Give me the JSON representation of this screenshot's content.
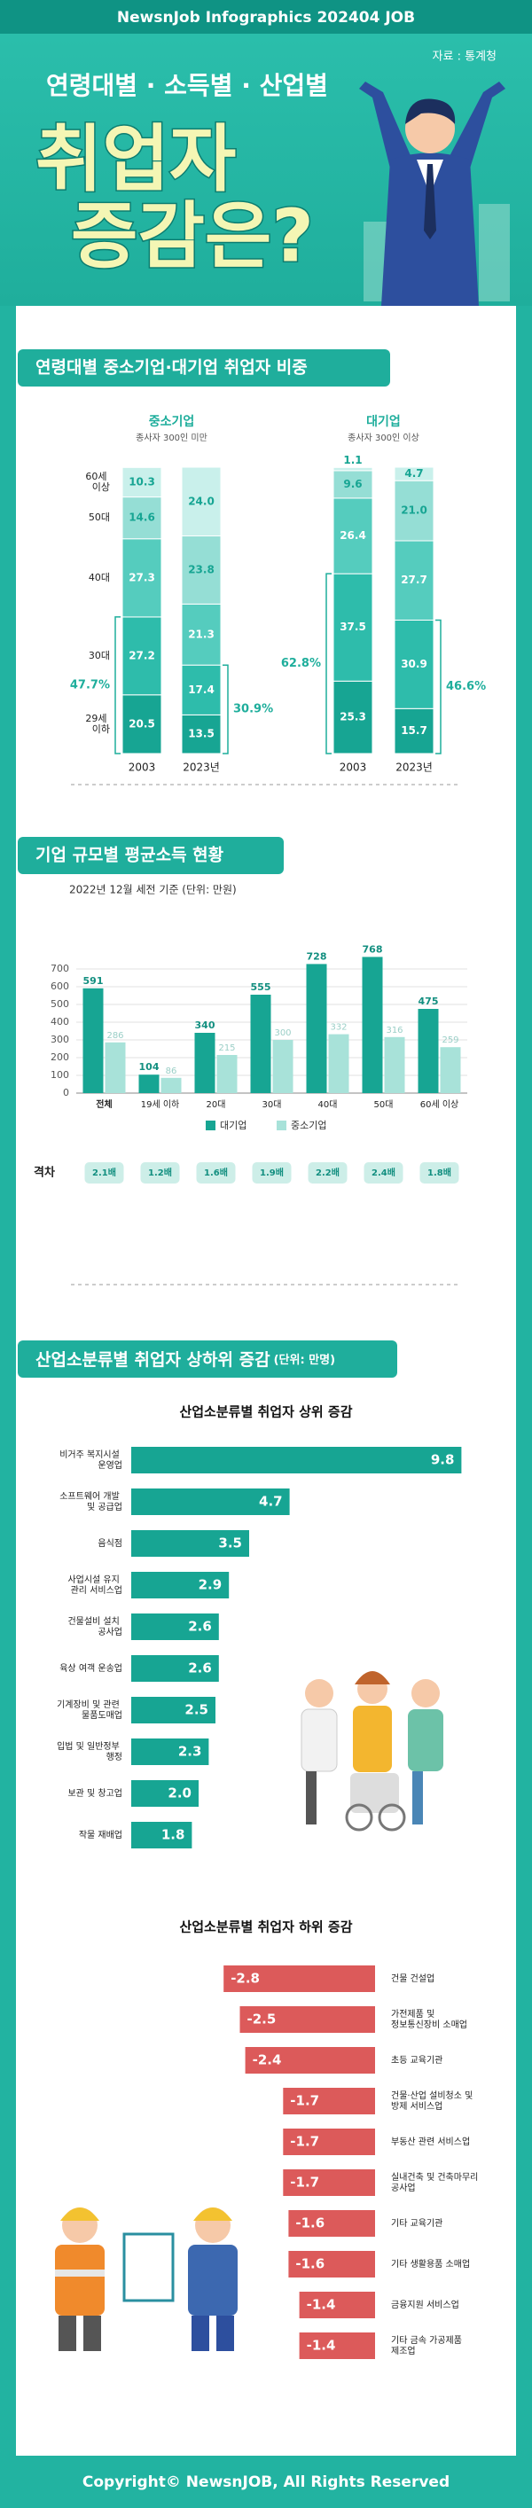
{
  "header": {
    "brand": "NewsnJob Infographics 202404 JOB",
    "source": "자료 : 통계청",
    "subtitle": "연령대별 · 소득별 · 산업별",
    "title_lines": [
      "취업자",
      "증감은?"
    ]
  },
  "section3": {
    "title": "산업소분류별 취업자 상하위 증감",
    "unit": "(단위: 만명)"
  },
  "footer": "Copyright© NewsnJOB, All Rights Reserved",
  "chart_data": [
    {
      "type": "stacked_bar",
      "title": "연령대별 중소기업·대기업 취업자 비중",
      "groups": [
        {
          "title": "중소기업",
          "subtitle": "종사자 300인 미만"
        },
        {
          "title": "대기업",
          "subtitle": "종사자 300인 이상"
        }
      ],
      "categories": [
        "2003",
        "2023년",
        "2003",
        "2023년"
      ],
      "ylim": [
        0,
        100
      ],
      "series": [
        {
          "name": "29세 이하",
          "color": "#17a593",
          "values": [
            20.5,
            13.5,
            25.3,
            15.7
          ]
        },
        {
          "name": "30대",
          "color": "#2ebcab",
          "values": [
            27.2,
            17.4,
            37.5,
            30.9
          ]
        },
        {
          "name": "40대",
          "color": "#55ccbe",
          "values": [
            27.3,
            21.3,
            26.4,
            27.7
          ]
        },
        {
          "name": "50대",
          "color": "#95ded5",
          "values": [
            14.6,
            23.8,
            9.6,
            21.0
          ],
          "value_labels": [
            "14.6",
            "23.8",
            "9.6",
            "21.0"
          ]
        },
        {
          "name": "60세 이상",
          "color": "#c9f0eb",
          "values": [
            10.3,
            24.0,
            1.1,
            4.7
          ],
          "value_labels": [
            "10.3",
            "24.0",
            "1.1",
            "4.7"
          ]
        }
      ],
      "brackets": [
        {
          "value": 47.7,
          "label": "47.7%"
        },
        {
          "value": 30.9,
          "label": "30.9%"
        },
        {
          "value": 62.8,
          "label": "62.8%"
        },
        {
          "value": 46.6,
          "label": "46.6%"
        }
      ]
    },
    {
      "type": "bar",
      "title": "기업 규모별 평균소득 현황",
      "subtitle": "2022년 12월 세전 기준 (단위: 만원)",
      "categories": [
        "전체",
        "19세 이하",
        "20대",
        "30대",
        "40대",
        "50대",
        "60세 이상"
      ],
      "series": [
        {
          "name": "대기업",
          "color": "#17a593",
          "values": [
            591,
            104,
            340,
            555,
            728,
            768,
            475
          ]
        },
        {
          "name": "중소기업",
          "color": "#a8e2d9",
          "values": [
            286,
            86,
            215,
            300,
            332,
            316,
            259
          ]
        }
      ],
      "ylim": [
        0,
        800
      ],
      "yticks": [
        0,
        100,
        200,
        300,
        400,
        500,
        600,
        700
      ],
      "grid": true,
      "gap": {
        "label": "격차",
        "values": [
          2.1,
          1.2,
          1.6,
          1.9,
          2.2,
          2.4,
          1.8
        ],
        "value_labels": [
          "2.1배",
          "1.2배",
          "1.6배",
          "1.9배",
          "2.2배",
          "2.4배",
          "1.8배"
        ]
      }
    },
    {
      "type": "hbar",
      "title": "산업소분류별 취업자 상위 증감",
      "color": "#17a593",
      "xlim": [
        0,
        10
      ],
      "categories": [
        "비거주 복지시설 운영업",
        "소프트웨어 개발 및 공급업",
        "음식점",
        "사업시설 유지 관리 서비스업",
        "건물설비 설치 공사업",
        "육상 여객 운송업",
        "기계장비 및 관련 물품도매업",
        "입법 및 일반정부 행정",
        "보관 및 창고업",
        "작물 재배업"
      ],
      "values": [
        9.8,
        4.7,
        3.5,
        2.9,
        2.6,
        2.6,
        2.5,
        2.3,
        2.0,
        1.8
      ],
      "value_labels": [
        "9.8",
        "4.7",
        "3.5",
        "2.9",
        "2.6",
        "2.6",
        "2.5",
        "2.3",
        "2.0",
        "1.8"
      ]
    },
    {
      "type": "hbar",
      "title": "산업소분류별 취업자 하위 증감",
      "color": "#dc5a5a",
      "xlim": [
        -3,
        0
      ],
      "categories": [
        "건물 건설업",
        "가전제품 및 정보통신장비 소매업",
        "초등 교육기관",
        "건물·산업 설비청소 및 방제 서비스업",
        "부동산 관련 서비스업",
        "실내건축 및 건축마무리 공사업",
        "기타 교육기관",
        "기타 생활용품 소매업",
        "금융지원 서비스업",
        "기타 금속 가공제품 제조업"
      ],
      "values": [
        -2.8,
        -2.5,
        -2.4,
        -1.7,
        -1.7,
        -1.7,
        -1.6,
        -1.6,
        -1.4,
        -1.4
      ]
    }
  ]
}
